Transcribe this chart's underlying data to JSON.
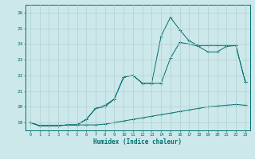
{
  "title": "",
  "xlabel": "Humidex (Indice chaleur)",
  "xlim": [
    -0.5,
    23.5
  ],
  "ylim": [
    18.5,
    26.5
  ],
  "xticks": [
    0,
    1,
    2,
    3,
    4,
    5,
    6,
    7,
    8,
    9,
    10,
    11,
    12,
    13,
    14,
    15,
    16,
    17,
    18,
    19,
    20,
    21,
    22,
    23
  ],
  "yticks": [
    19,
    20,
    21,
    22,
    23,
    24,
    25,
    26
  ],
  "bg_color": "#cce8ea",
  "grid_color": "#b0cfd2",
  "line_color": "#006e6e",
  "series1_x": [
    0,
    1,
    2,
    3,
    4,
    5,
    6,
    7,
    8,
    9,
    10,
    11,
    12,
    13,
    14,
    15,
    16,
    17,
    18,
    19,
    20,
    21,
    22,
    23
  ],
  "series1_y": [
    19.0,
    18.8,
    18.8,
    18.8,
    18.85,
    18.85,
    18.85,
    18.85,
    18.9,
    19.0,
    19.1,
    19.2,
    19.3,
    19.4,
    19.5,
    19.6,
    19.7,
    19.8,
    19.9,
    20.0,
    20.05,
    20.1,
    20.15,
    20.1
  ],
  "series2_x": [
    0,
    1,
    2,
    3,
    4,
    5,
    6,
    7,
    8,
    9,
    10,
    11,
    12,
    13,
    14,
    15,
    16,
    17,
    18,
    19,
    20,
    21,
    22,
    23
  ],
  "series2_y": [
    19.0,
    18.8,
    18.8,
    18.8,
    18.85,
    18.85,
    19.2,
    19.9,
    20.0,
    20.5,
    21.9,
    22.0,
    21.5,
    21.5,
    21.5,
    23.1,
    24.1,
    24.0,
    23.85,
    23.5,
    23.5,
    23.85,
    23.9,
    21.6
  ],
  "series3_x": [
    0,
    1,
    2,
    3,
    4,
    5,
    6,
    7,
    8,
    9,
    10,
    11,
    12,
    13,
    14,
    15,
    16,
    17,
    18,
    19,
    20,
    21,
    22,
    23
  ],
  "series3_y": [
    19.0,
    18.8,
    18.8,
    18.8,
    18.85,
    18.85,
    19.2,
    19.9,
    20.1,
    20.5,
    21.9,
    22.0,
    21.5,
    21.5,
    24.5,
    25.7,
    24.9,
    24.2,
    23.9,
    23.9,
    23.9,
    23.9,
    23.9,
    21.6
  ]
}
